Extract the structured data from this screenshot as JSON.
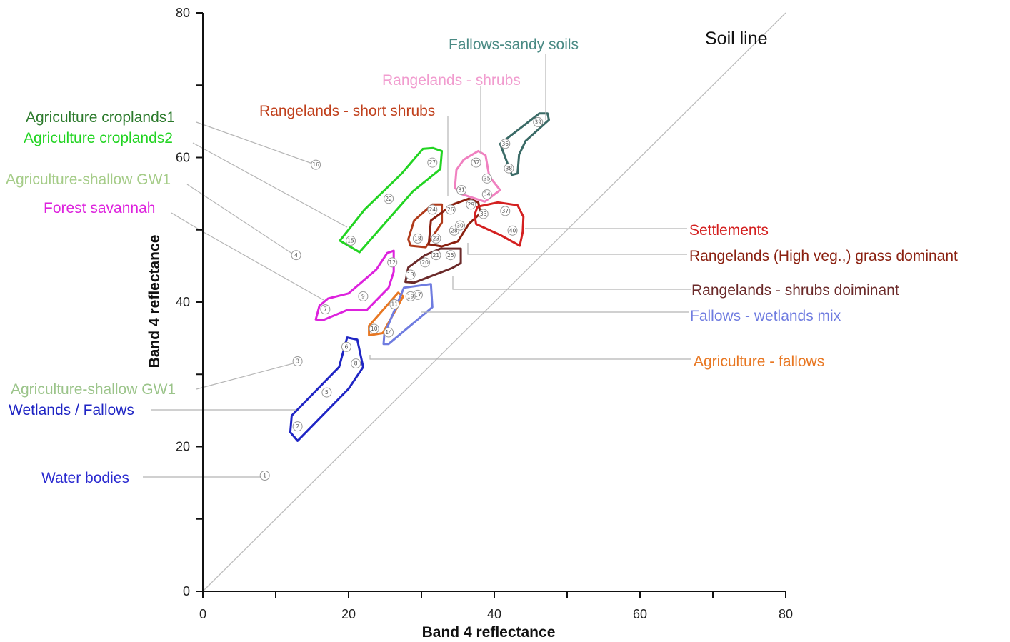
{
  "chart_data": {
    "type": "scatter",
    "title": "",
    "xlabel": "Band 4 reflectance",
    "ylabel": "Band 4 reflectance",
    "xlim": [
      0,
      80
    ],
    "ylim": [
      0,
      80
    ],
    "x_ticks": [
      0,
      20,
      40,
      60,
      80
    ],
    "y_ticks": [
      0,
      20,
      40,
      60,
      80
    ],
    "grid": false,
    "reference_line": {
      "label": "Soil line",
      "from": [
        0,
        0
      ],
      "to": [
        80,
        80
      ],
      "color": "#bbbbbb"
    },
    "points": [
      {
        "id": "1",
        "x": 8.5,
        "y": 16.0
      },
      {
        "id": "2",
        "x": 13.0,
        "y": 22.8
      },
      {
        "id": "3",
        "x": 13.0,
        "y": 31.8
      },
      {
        "id": "4",
        "x": 12.8,
        "y": 46.5
      },
      {
        "id": "5",
        "x": 17.0,
        "y": 27.5
      },
      {
        "id": "6",
        "x": 19.7,
        "y": 33.8
      },
      {
        "id": "7",
        "x": 16.8,
        "y": 39.0
      },
      {
        "id": "8",
        "x": 21.0,
        "y": 31.5
      },
      {
        "id": "9",
        "x": 22.0,
        "y": 40.8
      },
      {
        "id": "10",
        "x": 23.5,
        "y": 36.3
      },
      {
        "id": "11",
        "x": 26.3,
        "y": 39.7
      },
      {
        "id": "12",
        "x": 26.0,
        "y": 45.5
      },
      {
        "id": "13",
        "x": 28.5,
        "y": 43.8
      },
      {
        "id": "14",
        "x": 25.5,
        "y": 35.8
      },
      {
        "id": "15",
        "x": 20.3,
        "y": 48.5
      },
      {
        "id": "16",
        "x": 15.5,
        "y": 59.0
      },
      {
        "id": "17",
        "x": 29.5,
        "y": 41.0
      },
      {
        "id": "18",
        "x": 29.5,
        "y": 48.8
      },
      {
        "id": "19",
        "x": 28.5,
        "y": 40.8
      },
      {
        "id": "20",
        "x": 30.5,
        "y": 45.5
      },
      {
        "id": "21",
        "x": 32.0,
        "y": 46.5
      },
      {
        "id": "22",
        "x": 25.5,
        "y": 54.3
      },
      {
        "id": "23",
        "x": 32.0,
        "y": 48.8
      },
      {
        "id": "24",
        "x": 31.5,
        "y": 52.8
      },
      {
        "id": "25",
        "x": 34.0,
        "y": 46.5
      },
      {
        "id": "26",
        "x": 34.0,
        "y": 52.8
      },
      {
        "id": "27",
        "x": 31.5,
        "y": 59.3
      },
      {
        "id": "28",
        "x": 34.5,
        "y": 49.9
      },
      {
        "id": "29",
        "x": 36.8,
        "y": 53.5
      },
      {
        "id": "30",
        "x": 35.3,
        "y": 50.6
      },
      {
        "id": "31",
        "x": 35.5,
        "y": 55.5
      },
      {
        "id": "32",
        "x": 37.5,
        "y": 59.3
      },
      {
        "id": "33",
        "x": 38.5,
        "y": 52.2
      },
      {
        "id": "34",
        "x": 39.0,
        "y": 54.9
      },
      {
        "id": "35",
        "x": 39.0,
        "y": 57.1
      },
      {
        "id": "36",
        "x": 41.5,
        "y": 61.9
      },
      {
        "id": "37",
        "x": 41.5,
        "y": 52.6
      },
      {
        "id": "38",
        "x": 42.0,
        "y": 58.5
      },
      {
        "id": "39",
        "x": 46.0,
        "y": 64.9
      },
      {
        "id": "40",
        "x": 42.5,
        "y": 49.9
      }
    ],
    "groups": [
      {
        "name": "Water bodies",
        "color": "#2a2ad0",
        "points": [
          "1"
        ],
        "hull": []
      },
      {
        "name": "Wetlands / Fallows",
        "color": "#1f25c4",
        "points": [
          "2",
          "5",
          "6",
          "8"
        ],
        "hull": [
          [
            12,
            22
          ],
          [
            13,
            20.8
          ],
          [
            20,
            28
          ],
          [
            22,
            31
          ],
          [
            21.2,
            34.8
          ],
          [
            19.8,
            35.1
          ],
          [
            18.7,
            31
          ],
          [
            12.2,
            24.3
          ]
        ]
      },
      {
        "name": "Agriculture-shallow GW1",
        "color": "#9bc48a",
        "points": [
          "3"
        ],
        "hull": []
      },
      {
        "name": "Agriculture-shallow GW1",
        "color": "#a3cf8a",
        "points": [
          "4"
        ],
        "hull": []
      },
      {
        "name": "Forest savannah",
        "color": "#dd22dd",
        "points": [
          "7",
          "9",
          "12"
        ],
        "hull": [
          [
            15.5,
            37.6
          ],
          [
            16,
            39.5
          ],
          [
            17.2,
            40.5
          ],
          [
            20,
            41.2
          ],
          [
            23.8,
            44.5
          ],
          [
            25.3,
            46.8
          ],
          [
            26.2,
            47.1
          ],
          [
            26.2,
            44.2
          ],
          [
            25.5,
            42
          ],
          [
            22.5,
            38.9
          ],
          [
            19.8,
            38.9
          ],
          [
            16.5,
            37.5
          ]
        ]
      },
      {
        "name": "Agriculture - fallows",
        "color": "#e87722",
        "points": [
          "10",
          "11"
        ],
        "hull": [
          [
            22.8,
            35.4
          ],
          [
            24.7,
            35.7
          ],
          [
            27.5,
            40.8
          ],
          [
            26.8,
            41.3
          ],
          [
            22.8,
            36.7
          ]
        ]
      },
      {
        "name": "Fallows - wetlands mix",
        "color": "#6f7ce0",
        "points": [
          "14",
          "17",
          "19"
        ],
        "hull": [
          [
            24.8,
            34.2
          ],
          [
            25.5,
            34.2
          ],
          [
            31.5,
            39.3
          ],
          [
            31.3,
            42.5
          ],
          [
            27.6,
            42
          ],
          [
            24.9,
            35.5
          ]
        ]
      },
      {
        "name": "Rangelands - shrubs doiminant",
        "color": "#6b2a2a",
        "points": [
          "13",
          "20",
          "21",
          "25"
        ],
        "hull": [
          [
            27.8,
            42.8
          ],
          [
            28.2,
            44.8
          ],
          [
            30.5,
            46.5
          ],
          [
            32.6,
            47.4
          ],
          [
            35.4,
            47.4
          ],
          [
            35.4,
            45.4
          ],
          [
            34.2,
            44.7
          ],
          [
            29,
            42.7
          ]
        ]
      },
      {
        "name": "Rangelands - short shrubs",
        "color": "#b03a1a",
        "points": [
          "18",
          "24"
        ],
        "hull": [
          [
            28.2,
            48.7
          ],
          [
            29,
            51.3
          ],
          [
            31.5,
            53.5
          ],
          [
            32.8,
            53.5
          ],
          [
            32.8,
            51
          ],
          [
            30.6,
            47.6
          ],
          [
            28.5,
            47.8
          ]
        ]
      },
      {
        "name": "Rangelands (High veg.,) grass dominant",
        "color": "#8a2010",
        "points": [
          "23",
          "26",
          "28",
          "29",
          "30"
        ],
        "hull": [
          [
            31,
            48
          ],
          [
            31.3,
            51.3
          ],
          [
            34.3,
            53.5
          ],
          [
            36.5,
            54.3
          ],
          [
            37.8,
            53.8
          ],
          [
            38.1,
            52.3
          ],
          [
            36.5,
            50.8
          ],
          [
            35,
            48.4
          ],
          [
            32.8,
            47.7
          ]
        ]
      },
      {
        "name": "Settlements",
        "color": "#d42020",
        "points": [
          "33",
          "37",
          "40"
        ],
        "hull": [
          [
            37.3,
            52.1
          ],
          [
            37.7,
            53.2
          ],
          [
            40.5,
            53.8
          ],
          [
            43.2,
            53.4
          ],
          [
            44,
            51.8
          ],
          [
            43.9,
            49.7
          ],
          [
            43.5,
            47.8
          ],
          [
            41,
            49.2
          ],
          [
            37.5,
            50.8
          ]
        ]
      },
      {
        "name": "Rangelands - shrubs",
        "color": "#f080c0",
        "points": [
          "31",
          "32",
          "34",
          "35"
        ],
        "hull": [
          [
            34.6,
            55.8
          ],
          [
            34.8,
            58.3
          ],
          [
            35.8,
            59.7
          ],
          [
            37.8,
            60.9
          ],
          [
            38.8,
            60.3
          ],
          [
            39.3,
            57.4
          ],
          [
            40.8,
            55.5
          ],
          [
            38.7,
            53.9
          ],
          [
            35.6,
            54.9
          ]
        ]
      },
      {
        "name": "Fallows-sandy soils",
        "color": "#3a6a66",
        "points": [
          "36",
          "38",
          "39"
        ],
        "hull": [
          [
            40.8,
            61.9
          ],
          [
            42.4,
            57.6
          ],
          [
            43.2,
            57.8
          ],
          [
            43.4,
            60.4
          ],
          [
            44.3,
            62.3
          ],
          [
            47.5,
            65.2
          ],
          [
            47.3,
            66.1
          ],
          [
            46.2,
            66.1
          ]
        ]
      },
      {
        "name": "Agriculture croplands1",
        "color": "#2a7a2a",
        "points": [
          "16"
        ],
        "hull": []
      },
      {
        "name": "Agriculture croplands2",
        "color": "#22d422",
        "points": [
          "15",
          "22",
          "27"
        ],
        "hull": [
          [
            18.8,
            48.5
          ],
          [
            21.5,
            46.9
          ],
          [
            28.8,
            55.3
          ],
          [
            32.6,
            58.4
          ],
          [
            32.8,
            60.9
          ],
          [
            31.6,
            61.3
          ],
          [
            30.2,
            61.2
          ],
          [
            27.3,
            57.8
          ],
          [
            22.2,
            52.8
          ]
        ]
      }
    ],
    "annotations": [
      {
        "text": "Soil line"
      },
      {
        "text": "Fallows-sandy soils"
      },
      {
        "text": "Rangelands - shrubs"
      },
      {
        "text": "Rangelands - short shrubs"
      },
      {
        "text": "Agriculture croplands1"
      },
      {
        "text": "Agriculture croplands2"
      },
      {
        "text": "Agriculture-shallow GW1"
      },
      {
        "text": "Forest savannah"
      },
      {
        "text": "Settlements"
      },
      {
        "text": "Rangelands (High veg.,) grass dominant"
      },
      {
        "text": "Rangelands - shrubs doiminant"
      },
      {
        "text": "Fallows - wetlands mix"
      },
      {
        "text": "Agriculture - fallows"
      },
      {
        "text": "Agriculture-shallow GW1"
      },
      {
        "text": "Wetlands / Fallows"
      },
      {
        "text": "Water bodies"
      }
    ]
  },
  "labels": {
    "soil_line": "Soil line",
    "fallows_sandy": "Fallows-sandy soils",
    "rangelands_shrubs": "Rangelands - shrubs",
    "rangelands_short_shrubs": "Rangelands - short shrubs",
    "agri_croplands1": "Agriculture croplands1",
    "agri_croplands2": "Agriculture croplands2",
    "agri_shallow_gw1_top": "Agriculture-shallow GW1",
    "forest_savannah": "Forest savannah",
    "settlements": "Settlements",
    "rangelands_high_veg": "Rangelands (High veg.,) grass dominant",
    "rangelands_shrubs_dom": "Rangelands - shrubs doiminant",
    "fallows_wetlands_mix": "Fallows - wetlands mix",
    "agri_fallows": "Agriculture - fallows",
    "agri_shallow_gw1_bottom": "Agriculture-shallow GW1",
    "wetlands_fallows": "Wetlands / Fallows",
    "water_bodies": "Water bodies"
  },
  "colors": {
    "soil_line": "#111111",
    "fallows_sandy": "#4a8a84",
    "rangelands_shrubs": "#f19ccf",
    "rangelands_short_shrubs": "#c0401c",
    "agri_croplands1": "#2c7a2c",
    "agri_croplands2": "#22d422",
    "agri_shallow_gw1_top": "#a5cc88",
    "forest_savannah": "#dd22dd",
    "settlements": "#d42020",
    "rangelands_high_veg": "#8a2010",
    "rangelands_shrubs_dom": "#6b2a2a",
    "fallows_wetlands_mix": "#6f7ce0",
    "agri_fallows": "#e87722",
    "agri_shallow_gw1_bottom": "#9bc48a",
    "wetlands_fallows": "#1f25c4",
    "water_bodies": "#2a2ad0"
  }
}
